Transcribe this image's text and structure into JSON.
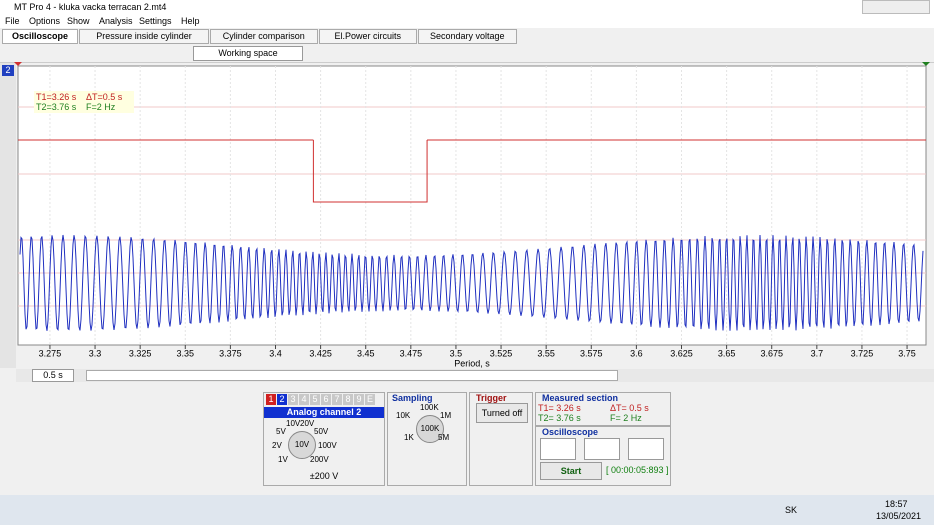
{
  "window": {
    "title": "MT Pro 4 - kluka vacka terracan 2.mt4"
  },
  "menu": [
    "File",
    "Options",
    "Show",
    "Analysis",
    "Settings",
    "Help"
  ],
  "tabs": [
    "Oscilloscope",
    "Pressure inside cylinder",
    "Cylinder comparison",
    "El.Power circuits",
    "Secondary voltage"
  ],
  "toolbar": {
    "workspace": "Working space"
  },
  "channel_indicator": "2",
  "cursor_info": {
    "t1": "T1=3.26 s",
    "dt": "ΔT=0.5 s",
    "t2": "T2=3.76 s",
    "f": "F=2 Hz"
  },
  "chart": {
    "xlim": [
      3.2573,
      3.7605
    ],
    "xticks": [
      3.275,
      3.3,
      3.325,
      3.35,
      3.375,
      3.4,
      3.425,
      3.45,
      3.475,
      3.5,
      3.525,
      3.55,
      3.575,
      3.6,
      3.625,
      3.65,
      3.675,
      3.7,
      3.725,
      3.75
    ],
    "x_label": "Period, s",
    "signal": {
      "low_start": 3.421,
      "low_end": 3.484
    }
  },
  "scroll": {
    "zoom": "0.5 s"
  },
  "channel_panel": {
    "buttons": [
      "1",
      "2",
      "3",
      "4",
      "5",
      "6",
      "7",
      "8",
      "9",
      "E"
    ],
    "title": "Analog channel 2",
    "knob": [
      "10V",
      "20V",
      "5V",
      "50V",
      "2V",
      "100V",
      "1V",
      "200V"
    ],
    "knob_center": "10V",
    "range": "±200 V"
  },
  "sampling": {
    "title": "Sampling",
    "knob": [
      "100K",
      "10K",
      "1M",
      "1K",
      "5M"
    ],
    "knob_center": "100K"
  },
  "trigger": {
    "title": "Trigger",
    "button": "Turned off"
  },
  "measured": {
    "title": "Measured section",
    "t1": "T1= 3.26 s",
    "dt": "ΔT= 0.5 s",
    "t2": "T2= 3.76 s",
    "f": "F= 2 Hz"
  },
  "oscilloscope": {
    "title": "Oscilloscope",
    "start": "Start",
    "timer": "[ 00:00:05:893 ]"
  },
  "taskbar": {
    "lang": "SK",
    "time": "18:57",
    "date": "13/05/2021"
  }
}
